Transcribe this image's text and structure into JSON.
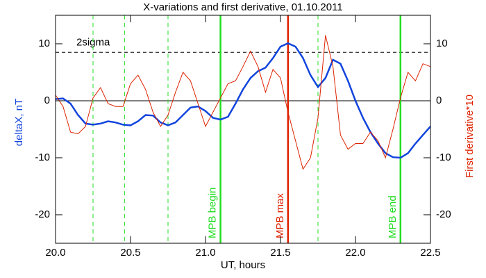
{
  "chart_data": {
    "type": "line",
    "title": "X-variations and first derivative, 01.10.2011",
    "xlabel": "UT, hours",
    "ylabel": "deltaX, nT",
    "y2label": "First derivative*10",
    "ylabel_color": "#1144dd",
    "y2label_color": "#dd2200",
    "x": [
      20.0,
      20.05,
      20.1,
      20.15,
      20.2,
      20.25,
      20.3,
      20.35,
      20.4,
      20.45,
      20.5,
      20.55,
      20.6,
      20.65,
      20.7,
      20.75,
      20.8,
      20.85,
      20.9,
      20.95,
      21.0,
      21.05,
      21.1,
      21.15,
      21.2,
      21.25,
      21.3,
      21.35,
      21.4,
      21.45,
      21.5,
      21.55,
      21.6,
      21.65,
      21.7,
      21.75,
      21.8,
      21.85,
      21.9,
      21.95,
      22.0,
      22.05,
      22.1,
      22.15,
      22.2,
      22.25,
      22.3,
      22.35,
      22.4,
      22.45,
      22.5
    ],
    "series": [
      {
        "name": "deltaX",
        "color": "#1144dd",
        "axis": "y",
        "values": [
          0.3,
          0.4,
          -0.5,
          -2.5,
          -4.0,
          -4.2,
          -4.0,
          -3.6,
          -3.8,
          -4.2,
          -4.3,
          -3.6,
          -2.5,
          -2.6,
          -3.8,
          -4.3,
          -3.8,
          -2.5,
          -1.2,
          -1.0,
          -1.8,
          -3.0,
          -3.3,
          -2.8,
          -0.5,
          2.0,
          4.0,
          5.2,
          5.8,
          7.5,
          9.5,
          10.1,
          9.5,
          7.5,
          4.5,
          2.4,
          4.0,
          7.2,
          6.5,
          3.5,
          0.0,
          -3.0,
          -5.5,
          -7.5,
          -9.2,
          -9.9,
          -10.0,
          -9.2,
          -7.5,
          -6.0,
          -4.5
        ]
      },
      {
        "name": "First derivative*10",
        "color": "#dd2200",
        "axis": "y2",
        "values": [
          1.0,
          -1.0,
          -5.5,
          -5.8,
          -4.5,
          0.5,
          2.3,
          -0.5,
          -1.0,
          -1.0,
          3.0,
          4.5,
          2.0,
          -2.0,
          -4.5,
          -2.5,
          1.5,
          5.0,
          3.5,
          -0.5,
          -4.5,
          -2.0,
          0.5,
          3.0,
          3.5,
          6.0,
          8.7,
          6.0,
          1.5,
          5.5,
          4.0,
          -2.0,
          -7.0,
          -12.0,
          -10.0,
          -3.0,
          11.5,
          6.0,
          -6.0,
          -8.5,
          -7.5,
          -7.5,
          -5.5,
          -7.0,
          -10.0,
          -5.0,
          0.5,
          5.0,
          3.5,
          6.5,
          6.0
        ]
      }
    ],
    "xlim": [
      20.0,
      22.5
    ],
    "xticks": [
      {
        "value": 20.0,
        "label": "20.0"
      },
      20.5,
      {
        "value": 21.0,
        "label": "21.0"
      },
      21.5,
      {
        "value": 22.0,
        "label": "22.0"
      },
      22.5
    ],
    "ylim": [
      -25,
      15
    ],
    "yticks": [
      -20,
      -10,
      0,
      10
    ],
    "y2lim": [
      -25,
      15
    ],
    "y2ticks": [
      -20,
      -10,
      0,
      10
    ],
    "hlines": [
      {
        "y": 8.5,
        "label": "2sigma",
        "style": "dashed",
        "color": "#000000"
      },
      {
        "y": 0,
        "style": "solid",
        "color": "#000000"
      }
    ],
    "vlines": [
      {
        "x": 20.25,
        "style": "dashed",
        "color": "#22dd22"
      },
      {
        "x": 20.46,
        "style": "dashed",
        "color": "#22dd22"
      },
      {
        "x": 20.75,
        "style": "dashed",
        "color": "#22dd22"
      },
      {
        "x": 21.75,
        "style": "dashed",
        "color": "#22dd22"
      },
      {
        "x": 21.1,
        "style": "solid",
        "color": "#22dd22",
        "label": "MPB begin"
      },
      {
        "x": 21.55,
        "style": "solid",
        "color": "#dd2200",
        "label": "MPB max"
      },
      {
        "x": 22.3,
        "style": "solid",
        "color": "#22dd22",
        "label": "MPB end"
      }
    ]
  }
}
